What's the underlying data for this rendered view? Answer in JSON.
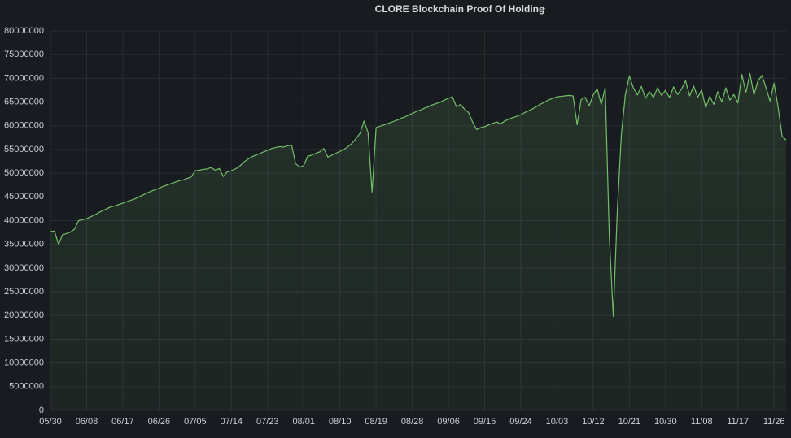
{
  "chart_data": {
    "type": "line",
    "title": "CLORE Blockchain Proof Of Holding",
    "categories": [
      "05/30",
      "05/31",
      "06/01",
      "06/02",
      "06/03",
      "06/04",
      "06/05",
      "06/06",
      "06/07",
      "06/08",
      "06/09",
      "06/10",
      "06/11",
      "06/12",
      "06/13",
      "06/14",
      "06/15",
      "06/16",
      "06/17",
      "06/18",
      "06/19",
      "06/20",
      "06/21",
      "06/22",
      "06/23",
      "06/24",
      "06/25",
      "06/26",
      "06/27",
      "06/28",
      "06/29",
      "06/30",
      "07/01",
      "07/02",
      "07/03",
      "07/04",
      "07/05",
      "07/06",
      "07/07",
      "07/08",
      "07/09",
      "07/10",
      "07/11",
      "07/12",
      "07/13",
      "07/14",
      "07/15",
      "07/16",
      "07/17",
      "07/18",
      "07/19",
      "07/20",
      "07/21",
      "07/22",
      "07/23",
      "07/24",
      "07/25",
      "07/26",
      "07/27",
      "07/28",
      "07/29",
      "07/30",
      "07/31",
      "08/01",
      "08/02",
      "08/03",
      "08/04",
      "08/05",
      "08/06",
      "08/07",
      "08/08",
      "08/09",
      "08/10",
      "08/11",
      "08/12",
      "08/13",
      "08/14",
      "08/15",
      "08/16",
      "08/17",
      "08/18",
      "08/19",
      "08/20",
      "08/21",
      "08/22",
      "08/23",
      "08/24",
      "08/25",
      "08/26",
      "08/27",
      "08/28",
      "08/29",
      "08/30",
      "08/31",
      "09/01",
      "09/02",
      "09/03",
      "09/04",
      "09/05",
      "09/06",
      "09/07",
      "09/08",
      "09/09",
      "09/10",
      "09/11",
      "09/12",
      "09/13",
      "09/14",
      "09/15",
      "09/16",
      "09/17",
      "09/18",
      "09/19",
      "09/20",
      "09/21",
      "09/22",
      "09/23",
      "09/24",
      "09/25",
      "09/26",
      "09/27",
      "09/28",
      "09/29",
      "09/30",
      "10/01",
      "10/02",
      "10/03",
      "10/04",
      "10/05",
      "10/06",
      "10/07",
      "10/08",
      "10/09",
      "10/10",
      "10/11",
      "10/12",
      "10/13",
      "10/14",
      "10/15",
      "10/16",
      "10/17",
      "10/18",
      "10/19",
      "10/20",
      "10/21",
      "10/22",
      "10/23",
      "10/24",
      "10/25",
      "10/26",
      "10/27",
      "10/28",
      "10/29",
      "10/30",
      "10/31",
      "11/01",
      "11/02",
      "11/03",
      "11/04",
      "11/05",
      "11/06",
      "11/07",
      "11/08",
      "11/09",
      "11/10",
      "11/11",
      "11/12",
      "11/13",
      "11/14",
      "11/15",
      "11/16",
      "11/17",
      "11/18",
      "11/19",
      "11/20",
      "11/21",
      "11/22",
      "11/23",
      "11/24",
      "11/25",
      "11/26",
      "11/27",
      "11/28",
      "11/29"
    ],
    "values": [
      37700000,
      37800000,
      35000000,
      37000000,
      37300000,
      37600000,
      38200000,
      40000000,
      40200000,
      40400000,
      40800000,
      41200000,
      41700000,
      42100000,
      42500000,
      42900000,
      43100000,
      43400000,
      43700000,
      44000000,
      44300000,
      44600000,
      45000000,
      45400000,
      45800000,
      46200000,
      46500000,
      46800000,
      47200000,
      47500000,
      47800000,
      48100000,
      48400000,
      48600000,
      48900000,
      49200000,
      50500000,
      50600000,
      50800000,
      50900000,
      51200000,
      50600000,
      51000000,
      49300000,
      50300000,
      50500000,
      50900000,
      51400000,
      52300000,
      52900000,
      53400000,
      53800000,
      54100000,
      54500000,
      54800000,
      55200000,
      55400000,
      55600000,
      55500000,
      55800000,
      55900000,
      52000000,
      51300000,
      51600000,
      53600000,
      53800000,
      54200000,
      54500000,
      55200000,
      53400000,
      53800000,
      54200000,
      54600000,
      55000000,
      55600000,
      56300000,
      57300000,
      58400000,
      61000000,
      58600000,
      46000000,
      59600000,
      59900000,
      60200000,
      60500000,
      60800000,
      61100000,
      61500000,
      61800000,
      62200000,
      62600000,
      63000000,
      63300000,
      63700000,
      64000000,
      64400000,
      64700000,
      65000000,
      65400000,
      65800000,
      66100000,
      64000000,
      64500000,
      63500000,
      62800000,
      60800000,
      59200000,
      59600000,
      59800000,
      60200000,
      60500000,
      60800000,
      60400000,
      61000000,
      61400000,
      61700000,
      62000000,
      62300000,
      62800000,
      63200000,
      63600000,
      64100000,
      64600000,
      65000000,
      65500000,
      65800000,
      66100000,
      66200000,
      66300000,
      66400000,
      66300000,
      60200000,
      65500000,
      66000000,
      64200000,
      66500000,
      67800000,
      64500000,
      68000000,
      37000000,
      19800000,
      42000000,
      58000000,
      66500000,
      70500000,
      68000000,
      66500000,
      68300000,
      65800000,
      67200000,
      66000000,
      68000000,
      66400000,
      67500000,
      65900000,
      68200000,
      66600000,
      67800000,
      69500000,
      66300000,
      68400000,
      66000000,
      67500000,
      63800000,
      66200000,
      64500000,
      67200000,
      65000000,
      68000000,
      65400000,
      66600000,
      64800000,
      70800000,
      67000000,
      71000000,
      66500000,
      69500000,
      70600000,
      68000000,
      65200000,
      69000000,
      64000000,
      57800000,
      57000000
    ],
    "color": "#73bf69",
    "xticks": [
      "05/30",
      "06/08",
      "06/17",
      "06/26",
      "07/05",
      "07/14",
      "07/23",
      "08/01",
      "08/10",
      "08/19",
      "08/28",
      "09/06",
      "09/15",
      "09/24",
      "10/03",
      "10/12",
      "10/21",
      "10/30",
      "11/08",
      "11/17",
      "11/26"
    ],
    "ylim": [
      0,
      80000000
    ],
    "yticks": [
      0,
      5000000,
      10000000,
      15000000,
      20000000,
      25000000,
      30000000,
      35000000,
      40000000,
      45000000,
      50000000,
      55000000,
      60000000,
      65000000,
      70000000,
      75000000,
      80000000
    ],
    "grid": true
  }
}
